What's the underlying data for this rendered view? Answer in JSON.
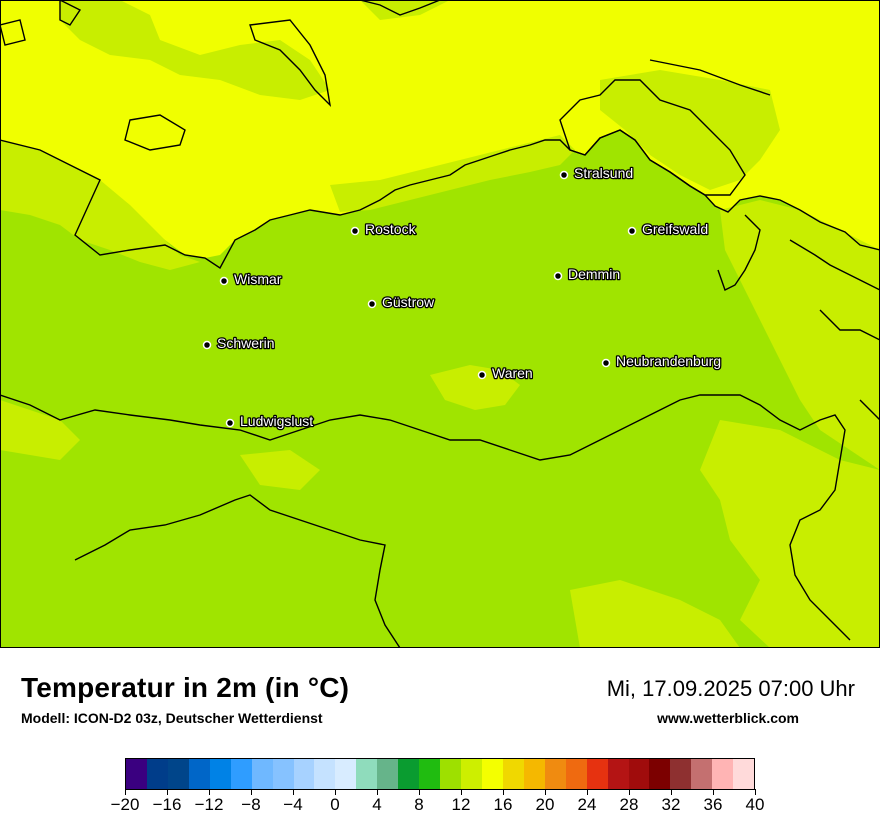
{
  "map": {
    "colors": {
      "sea": "#f0ff00",
      "land": "#a0e400",
      "light_land": "#c8ee00",
      "border": "#000000"
    },
    "cities": [
      {
        "name": "Stralsund"
      },
      {
        "name": "Rostock"
      },
      {
        "name": "Greifswald"
      },
      {
        "name": "Wismar"
      },
      {
        "name": "Demmin"
      },
      {
        "name": "Güstrow"
      },
      {
        "name": "Schwerin"
      },
      {
        "name": "Neubrandenburg"
      },
      {
        "name": "Waren"
      },
      {
        "name": "Ludwigslust"
      }
    ]
  },
  "footer": {
    "title": "Temperatur in 2m (in °C)",
    "model": "Modell: ICON-D2 03z, Deutscher Wetterdienst",
    "datetime": "Mi, 17.09.2025 07:00 Uhr",
    "website": "www.wetterblick.com"
  },
  "legend": {
    "min": -20,
    "max": 40,
    "colors": [
      "#3a0080",
      "#003d8a",
      "#00458a",
      "#0066c8",
      "#0082e6",
      "#2f9dff",
      "#6fb8ff",
      "#86c2ff",
      "#a7d2ff",
      "#c5e2ff",
      "#d8ecff",
      "#8fdcbc",
      "#66b48a",
      "#0a9c30",
      "#20bc10",
      "#9ee000",
      "#cdef00",
      "#f4ff00",
      "#f0d800",
      "#f5b800",
      "#f08b10",
      "#ef6a10",
      "#e63210",
      "#b41414",
      "#a00c0c",
      "#7c0000",
      "#8e3030",
      "#c47070",
      "#ffb4b4",
      "#ffdada"
    ],
    "tick_labels": [
      "−20",
      "−16",
      "−12",
      "−8",
      "−4",
      "0",
      "4",
      "8",
      "12",
      "16",
      "20",
      "24",
      "28",
      "32",
      "36",
      "40"
    ]
  }
}
